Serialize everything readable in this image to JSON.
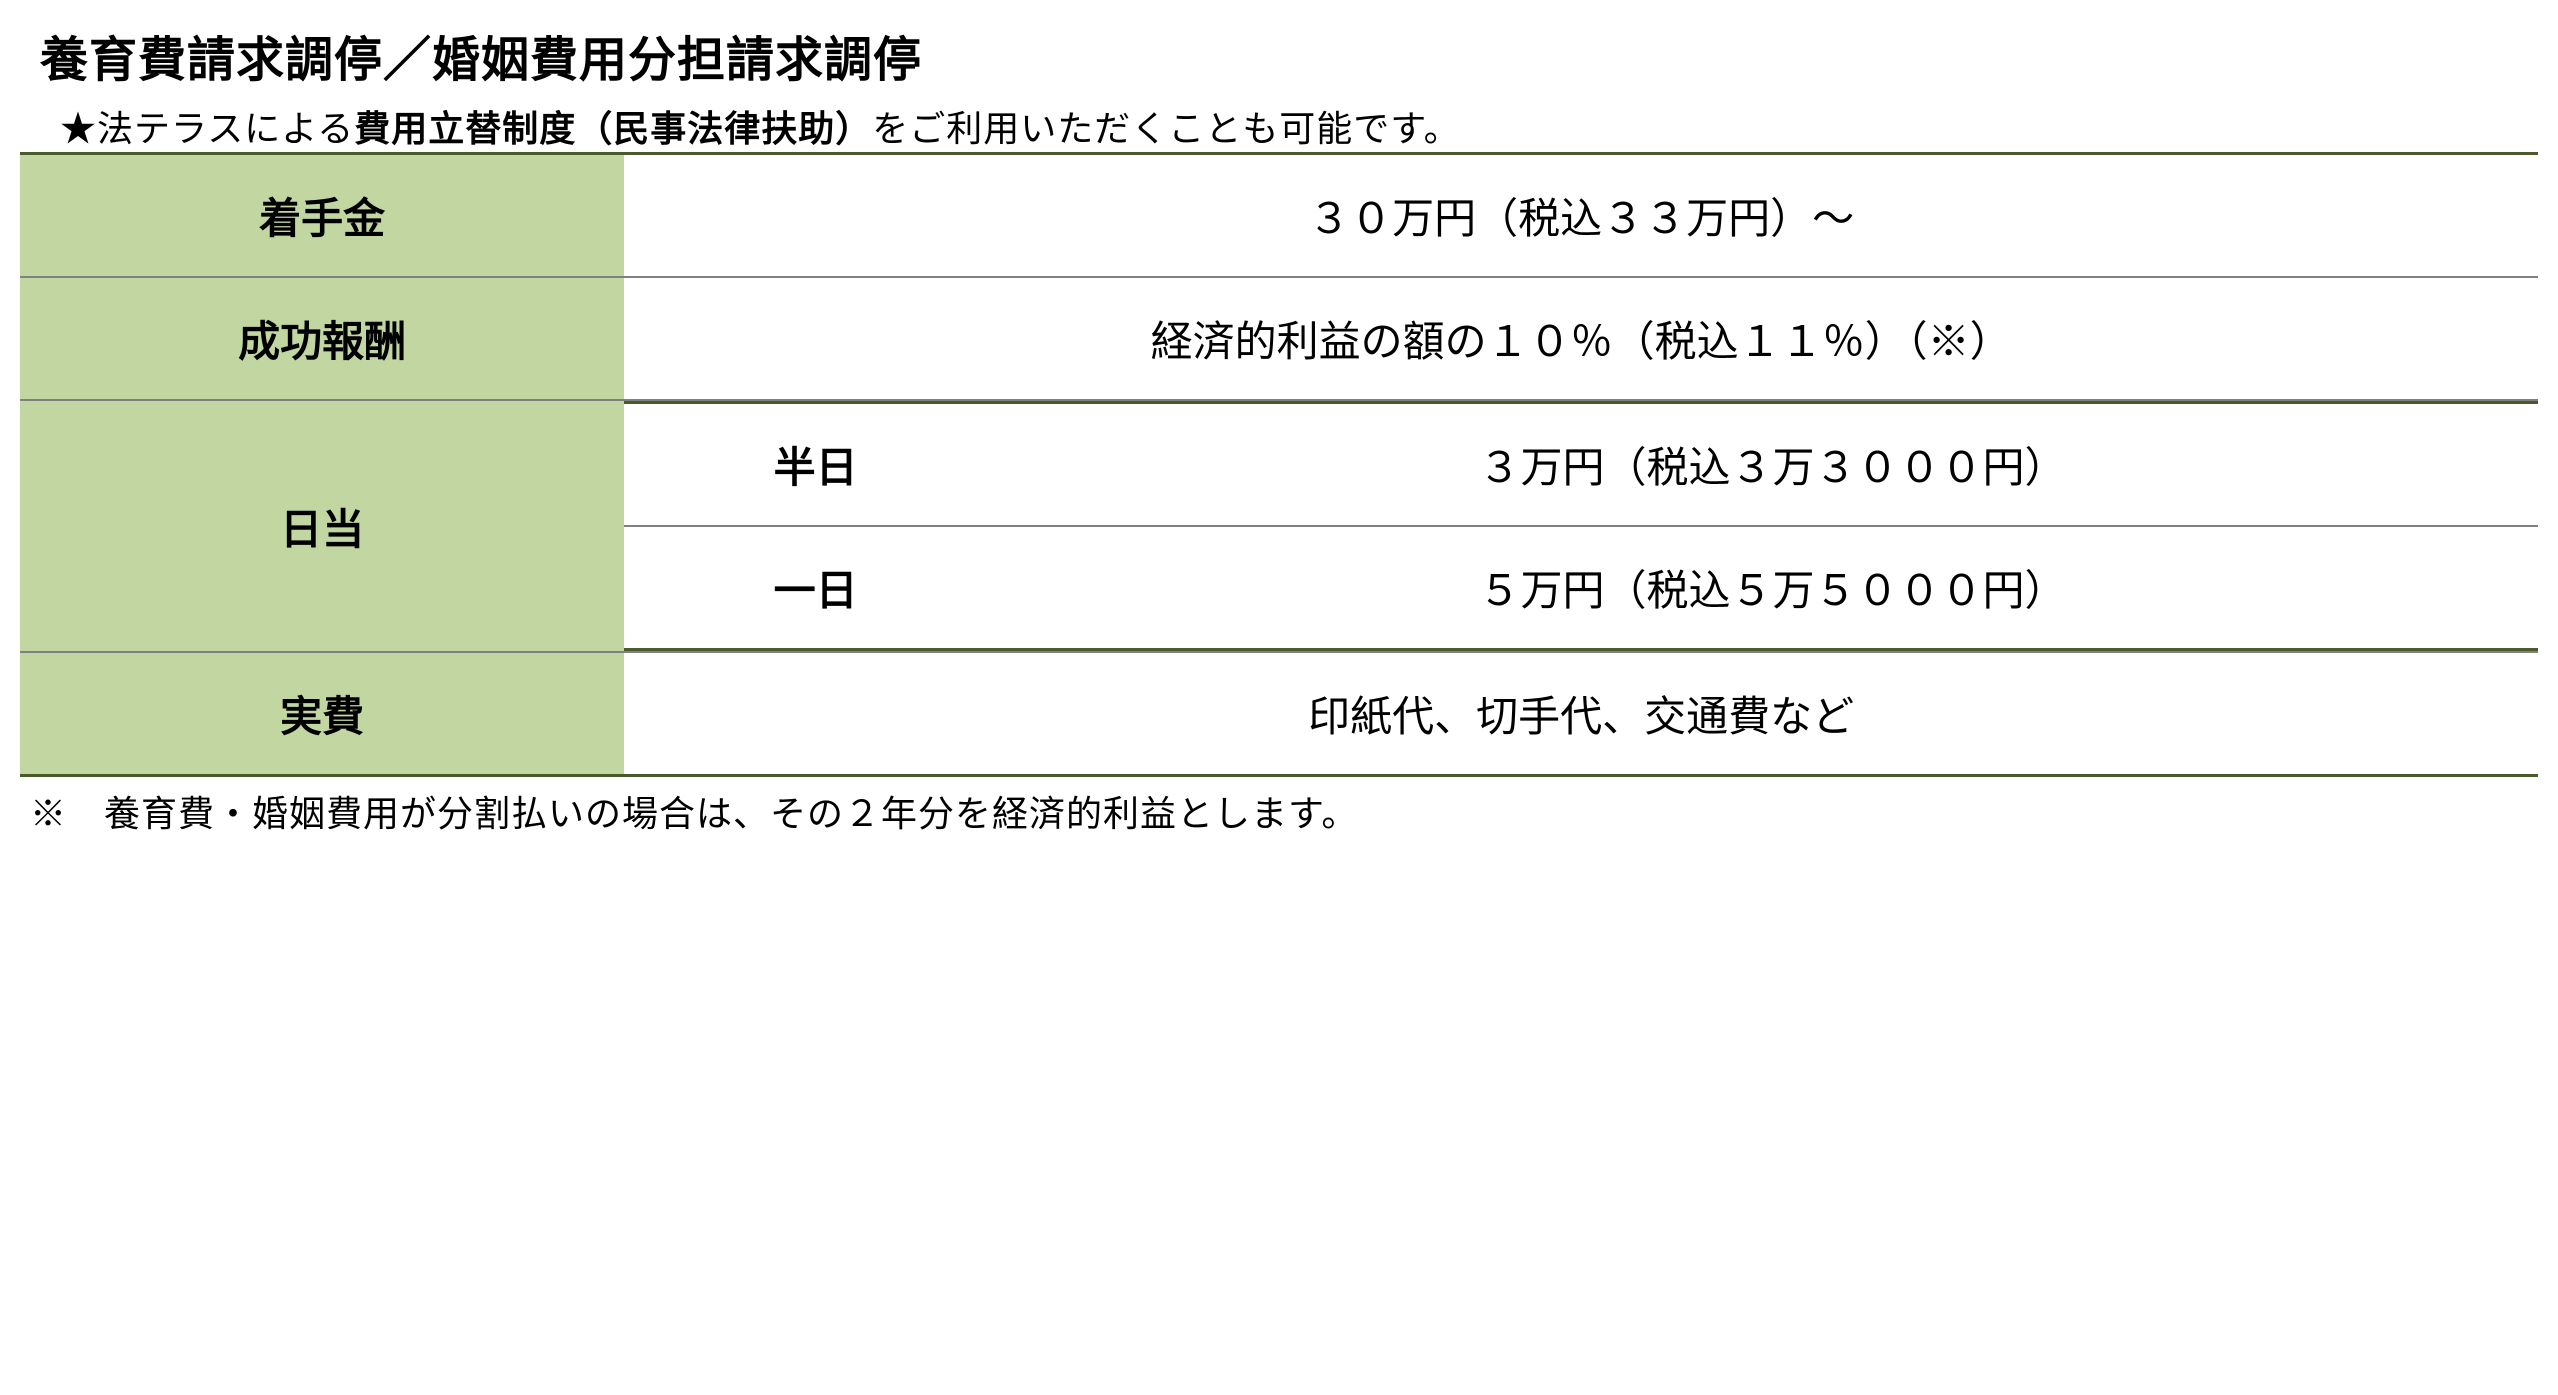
{
  "title": "養育費請求調停／婚姻費用分担請求調停",
  "subtitle_prefix": "★法テラスによる",
  "subtitle_bold": "費用立替制度（民事法律扶助）",
  "subtitle_suffix": "をご利用いただくことも可能です。",
  "table": {
    "rows": [
      {
        "label": "着手金",
        "value": "３０万円（税込３３万円）～"
      },
      {
        "label": "成功報酬",
        "value": "経済的利益の額の１０％（税込１１％）（※）"
      },
      {
        "label": "日当",
        "subrows": [
          {
            "sublabel": "半日",
            "subvalue": "３万円（税込３万３０００円）"
          },
          {
            "sublabel": "一日",
            "subvalue": "５万円（税込５万５０００円）"
          }
        ]
      },
      {
        "label": "実費",
        "value": "印紙代、切手代、交通費など"
      }
    ]
  },
  "footnote": "※　養育費・婚姻費用が分割払いの場合は、その２年分を経済的利益とします。",
  "colors": {
    "header_cell_bg": "#c1d6a1",
    "border_top_bottom": "#4a5a2a",
    "border_row": "#808080",
    "text": "#000000",
    "background": "#ffffff"
  },
  "typography": {
    "title_fontsize": 48,
    "subtitle_fontsize": 36,
    "table_fontsize": 42,
    "footnote_fontsize": 36,
    "title_weight": "bold",
    "label_weight": "bold"
  }
}
